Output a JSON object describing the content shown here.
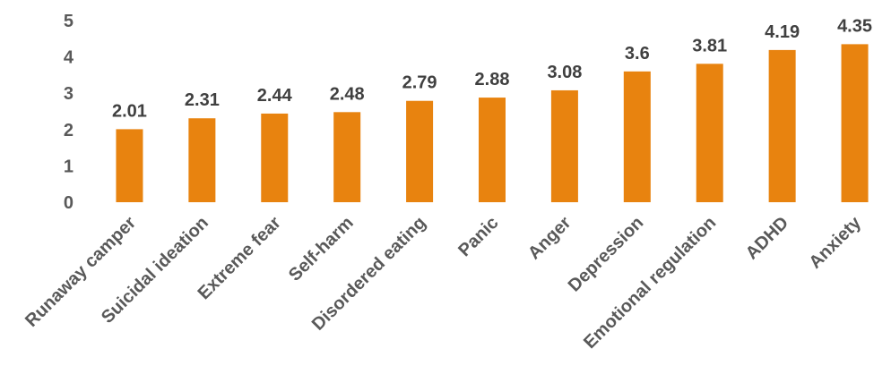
{
  "chart_data": {
    "type": "bar",
    "title": "",
    "xlabel": "",
    "ylabel": "",
    "categories": [
      "Runaway camper",
      "Suicidal ideation",
      "Extreme fear",
      "Self-harm",
      "Disordered eating",
      "Panic",
      "Anger",
      "Depression",
      "Emotional regulation",
      "ADHD",
      "Anxiety"
    ],
    "values": [
      2.01,
      2.31,
      2.44,
      2.48,
      2.79,
      2.88,
      3.08,
      3.6,
      3.81,
      4.19,
      4.35
    ],
    "data_labels": [
      "2.01",
      "2.31",
      "2.44",
      "2.48",
      "2.79",
      "2.88",
      "3.08",
      "3.6",
      "3.81",
      "4.19",
      "4.35"
    ],
    "ylim": [
      0,
      5
    ],
    "yticks": [
      "0",
      "1",
      "2",
      "3",
      "4",
      "5"
    ],
    "grid": false,
    "legend": "none",
    "bar_color": "#E8830F"
  }
}
